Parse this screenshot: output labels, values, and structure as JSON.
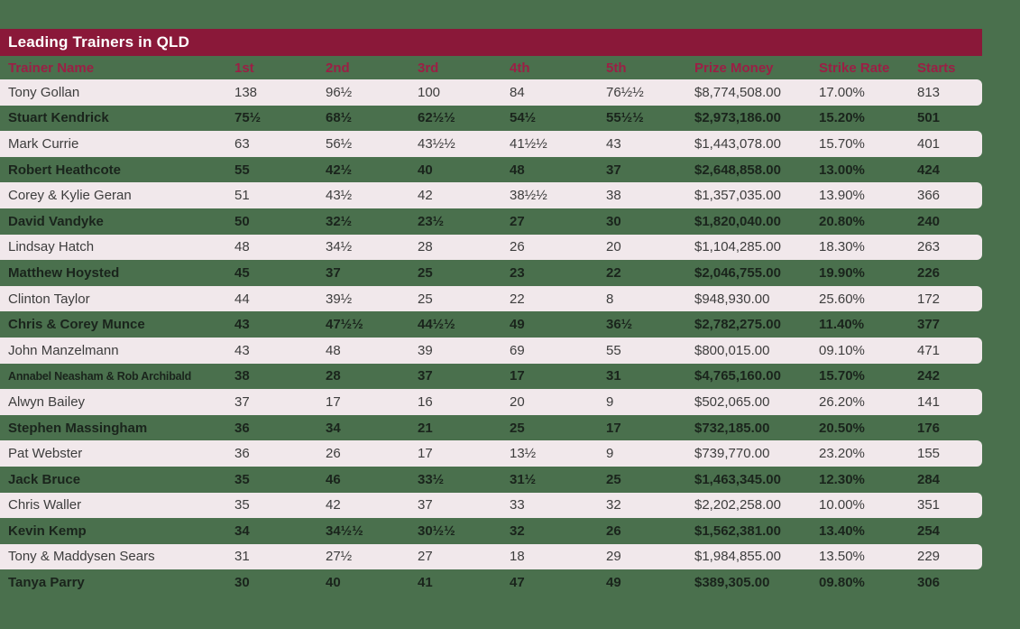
{
  "title": "Leading Trainers in QLD",
  "colors": {
    "background": "#4a704d",
    "title_bar": "#8a1839",
    "title_text": "#ffffff",
    "header_text": "#9b1f45",
    "row_band": "#f1e8eb",
    "band_row_text": "#3d3d3d",
    "green_row_text": "#1a241c"
  },
  "chart_data": {
    "type": "table",
    "title": "Leading Trainers in QLD",
    "columns": [
      "Trainer Name",
      "1st",
      "2nd",
      "3rd",
      "4th",
      "5th",
      "Prize Money",
      "Strike Rate",
      "Starts"
    ],
    "rows": [
      [
        "Tony Gollan",
        "138",
        "96½",
        "100",
        "84",
        "76½½",
        "$8,774,508.00",
        "17.00%",
        "813"
      ],
      [
        "Stuart Kendrick",
        "75½",
        "68½",
        "62½½",
        "54½",
        "55½½",
        "$2,973,186.00",
        "15.20%",
        "501"
      ],
      [
        "Mark Currie",
        "63",
        "56½",
        "43½½",
        "41½½",
        "43",
        "$1,443,078.00",
        "15.70%",
        "401"
      ],
      [
        "Robert Heathcote",
        "55",
        "42½",
        "40",
        "48",
        "37",
        "$2,648,858.00",
        "13.00%",
        "424"
      ],
      [
        "Corey & Kylie Geran",
        "51",
        "43½",
        "42",
        "38½½",
        "38",
        "$1,357,035.00",
        "13.90%",
        "366"
      ],
      [
        "David Vandyke",
        "50",
        "32½",
        "23½",
        "27",
        "30",
        "$1,820,040.00",
        "20.80%",
        "240"
      ],
      [
        "Lindsay Hatch",
        "48",
        "34½",
        "28",
        "26",
        "20",
        "$1,104,285.00",
        "18.30%",
        "263"
      ],
      [
        "Matthew Hoysted",
        "45",
        "37",
        "25",
        "23",
        "22",
        "$2,046,755.00",
        "19.90%",
        "226"
      ],
      [
        "Clinton Taylor",
        "44",
        "39½",
        "25",
        "22",
        "8",
        "$948,930.00",
        "25.60%",
        "172"
      ],
      [
        "Chris & Corey Munce",
        "43",
        "47½½",
        "44½½",
        "49",
        "36½",
        "$2,782,275.00",
        "11.40%",
        "377"
      ],
      [
        "John Manzelmann",
        "43",
        "48",
        "39",
        "69",
        "55",
        "$800,015.00",
        "09.10%",
        "471"
      ],
      [
        "Annabel Neasham & Rob Archibald",
        "38",
        "28",
        "37",
        "17",
        "31",
        "$4,765,160.00",
        "15.70%",
        "242"
      ],
      [
        "Alwyn Bailey",
        "37",
        "17",
        "16",
        "20",
        "9",
        "$502,065.00",
        "26.20%",
        "141"
      ],
      [
        "Stephen Massingham",
        "36",
        "34",
        "21",
        "25",
        "17",
        "$732,185.00",
        "20.50%",
        "176"
      ],
      [
        "Pat Webster",
        "36",
        "26",
        "17",
        "13½",
        "9",
        "$739,770.00",
        "23.20%",
        "155"
      ],
      [
        "Jack Bruce",
        "35",
        "46",
        "33½",
        "31½",
        "25",
        "$1,463,345.00",
        "12.30%",
        "284"
      ],
      [
        "Chris Waller",
        "35",
        "42",
        "37",
        "33",
        "32",
        "$2,202,258.00",
        "10.00%",
        "351"
      ],
      [
        "Kevin Kemp",
        "34",
        "34½½",
        "30½½",
        "32",
        "26",
        "$1,562,381.00",
        "13.40%",
        "254"
      ],
      [
        "Tony & Maddysen Sears",
        "31",
        "27½",
        "27",
        "18",
        "29",
        "$1,984,855.00",
        "13.50%",
        "229"
      ],
      [
        "Tanya Parry",
        "30",
        "40",
        "41",
        "47",
        "49",
        "$389,305.00",
        "09.80%",
        "306"
      ]
    ]
  }
}
